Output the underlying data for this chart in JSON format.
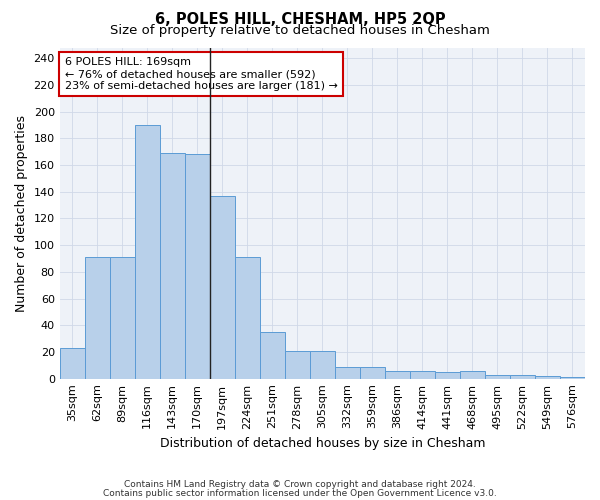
{
  "title": "6, POLES HILL, CHESHAM, HP5 2QP",
  "subtitle": "Size of property relative to detached houses in Chesham",
  "xlabel": "Distribution of detached houses by size in Chesham",
  "ylabel": "Number of detached properties",
  "categories": [
    "35sqm",
    "62sqm",
    "89sqm",
    "116sqm",
    "143sqm",
    "170sqm",
    "197sqm",
    "224sqm",
    "251sqm",
    "278sqm",
    "305sqm",
    "332sqm",
    "359sqm",
    "386sqm",
    "414sqm",
    "441sqm",
    "468sqm",
    "495sqm",
    "522sqm",
    "549sqm",
    "576sqm"
  ],
  "values": [
    23,
    91,
    91,
    190,
    169,
    168,
    137,
    91,
    35,
    21,
    21,
    9,
    9,
    6,
    6,
    5,
    6,
    3,
    3,
    2,
    1
  ],
  "bar_color": "#b8d0ea",
  "bar_edge_color": "#5b9bd5",
  "vline_position": 5.5,
  "vline_color": "#222222",
  "annotation_text": "6 POLES HILL: 169sqm\n← 76% of detached houses are smaller (592)\n23% of semi-detached houses are larger (181) →",
  "annotation_box_facecolor": "#ffffff",
  "annotation_box_edgecolor": "#cc0000",
  "ylim": [
    0,
    248
  ],
  "yticks": [
    0,
    20,
    40,
    60,
    80,
    100,
    120,
    140,
    160,
    180,
    200,
    220,
    240
  ],
  "footer_line1": "Contains HM Land Registry data © Crown copyright and database right 2024.",
  "footer_line2": "Contains public sector information licensed under the Open Government Licence v3.0.",
  "title_fontsize": 10.5,
  "subtitle_fontsize": 9.5,
  "xlabel_fontsize": 9,
  "ylabel_fontsize": 9,
  "tick_fontsize": 8,
  "annotation_fontsize": 8,
  "footer_fontsize": 6.5,
  "bg_color": "#ffffff",
  "plot_bg_color": "#eef2f8",
  "grid_color": "#d0d8e8"
}
